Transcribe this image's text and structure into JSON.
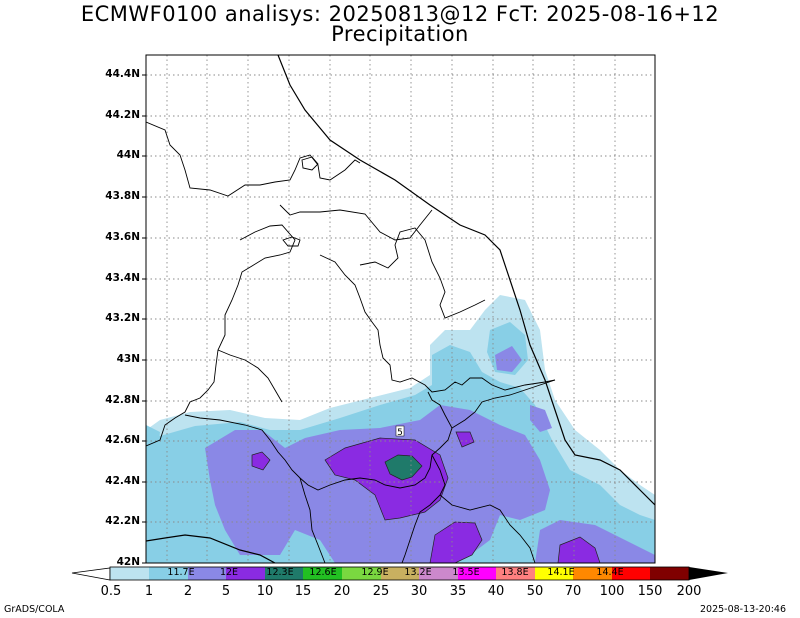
{
  "title": {
    "line1": "ECMWF0100 analisys: 20250813@12 FcT: 2025-08-16+12",
    "line2": "Precipitation"
  },
  "map": {
    "lat_labels": [
      "44.4N",
      "44.2N",
      "44N",
      "43.8N",
      "43.6N",
      "43.4N",
      "43.2N",
      "43N",
      "42.8N",
      "42.6N",
      "42.4N",
      "42.2N",
      "42N"
    ],
    "lon_labels": [
      "11.7E",
      "12E",
      "12.3E",
      "12.6E",
      "12.9E",
      "13.2E",
      "13.5E",
      "13.8E",
      "14.1E",
      "14.4E"
    ],
    "station_marker": "5",
    "grid": "dotted",
    "extent": {
      "lon": [
        11.5,
        14.5
      ],
      "lat": [
        42.0,
        44.5
      ]
    }
  },
  "colorbar": {
    "levels": [
      "0.5",
      "1",
      "2",
      "5",
      "10",
      "15",
      "20",
      "25",
      "30",
      "35",
      "40",
      "50",
      "70",
      "100",
      "150",
      "200"
    ],
    "colors": [
      "#ffffff",
      "#bde3f0",
      "#88cfe6",
      "#8a88e6",
      "#8a2be2",
      "#1f7a6a",
      "#22c022",
      "#7ad840",
      "#c8b060",
      "#cc88cc",
      "#ff00ff",
      "#ff8080",
      "#ffff00",
      "#ff8800",
      "#ff0000",
      "#800000",
      "#000000"
    ]
  },
  "footer": {
    "left": "GrADS/COLA",
    "right": "2025-08-13-20:46"
  }
}
